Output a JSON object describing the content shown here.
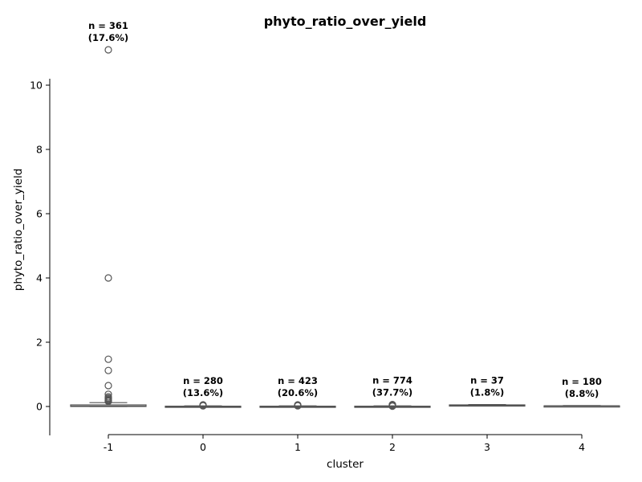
{
  "chart_data": {
    "type": "box",
    "title": "phyto_ratio_over_yield",
    "xlabel": "cluster",
    "ylabel": "phyto_ratio_over_yield",
    "categories": [
      "-1",
      "0",
      "1",
      "2",
      "3",
      "4"
    ],
    "ylim": [
      -0.9,
      10.2
    ],
    "yticks": [
      0,
      2,
      4,
      6,
      8,
      10
    ],
    "grid": false,
    "box_color": "#ffffff",
    "edge_color": "#555555",
    "boxes": [
      {
        "category": "-1",
        "whisker_low": 0.0,
        "q1": 0.0,
        "median": 0.01,
        "q3": 0.05,
        "whisker_high": 0.12,
        "outliers": [
          11.1,
          4.0,
          1.47,
          1.12,
          0.65,
          0.38,
          0.3,
          0.26,
          0.23,
          0.2,
          0.18,
          0.16
        ],
        "count_label": "n = 361",
        "pct_label": "(17.6%)"
      },
      {
        "category": "0",
        "whisker_low": 0.0,
        "q1": 0.0,
        "median": 0.0,
        "q3": 0.01,
        "whisker_high": 0.02,
        "outliers": [
          0.05,
          0.04,
          0.03,
          0.02
        ],
        "count_label": "n = 280",
        "pct_label": "(13.6%)"
      },
      {
        "category": "1",
        "whisker_low": 0.0,
        "q1": 0.0,
        "median": 0.0,
        "q3": 0.01,
        "whisker_high": 0.02,
        "outliers": [
          0.05,
          0.04,
          0.03,
          0.02
        ],
        "count_label": "n = 423",
        "pct_label": "(20.6%)"
      },
      {
        "category": "2",
        "whisker_low": 0.0,
        "q1": 0.0,
        "median": 0.0,
        "q3": 0.01,
        "whisker_high": 0.02,
        "outliers": [
          0.06,
          0.05,
          0.04,
          0.03,
          0.02,
          0.01
        ],
        "count_label": "n = 774",
        "pct_label": "(37.7%)"
      },
      {
        "category": "3",
        "whisker_low": 0.02,
        "q1": 0.03,
        "median": 0.04,
        "q3": 0.05,
        "whisker_high": 0.06,
        "outliers": [],
        "count_label": "n = 37",
        "pct_label": "(1.8%)"
      },
      {
        "category": "4",
        "whisker_low": 0.0,
        "q1": 0.01,
        "median": 0.02,
        "q3": 0.02,
        "whisker_high": 0.03,
        "outliers": [],
        "count_label": "n = 180",
        "pct_label": "(8.8%)"
      }
    ]
  }
}
